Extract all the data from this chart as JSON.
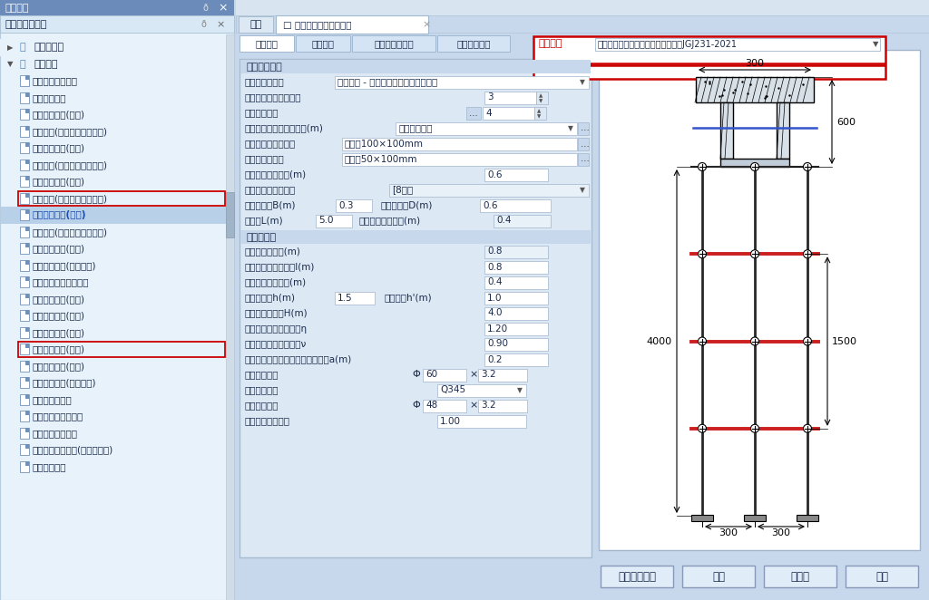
{
  "title_bar": "工程管理",
  "left_panel_title": "安全计算工具箱",
  "tab1": "首页",
  "tab2": "盘扣式梁模板支架计算",
  "tabs": [
    "架体参数",
    "荷载参数",
    "地基和楼板参数",
    "面板木方参数"
  ],
  "norm_label": "规范选择",
  "norm_value": "承插型盘扣式钢管支架安全技术规程JGJ231-2021",
  "tree_folder1": "脚手架工程",
  "tree_folder2": "模板工程",
  "tree_files": [
    {
      "label": "梁模板木支撑计算",
      "highlighted": false,
      "boxed": false
    },
    {
      "label": "梁侧模板计算",
      "highlighted": false,
      "boxed": false
    },
    {
      "label": "梁底模板支架(扣件)",
      "highlighted": false,
      "boxed": false
    },
    {
      "label": "梁底模架(扣件梁板立杆共用)",
      "highlighted": false,
      "boxed": false
    },
    {
      "label": "梁底模板支架(轮扣)",
      "highlighted": false,
      "boxed": false
    },
    {
      "label": "梁底模架(轮扣梁板立杆共用)",
      "highlighted": false,
      "boxed": false
    },
    {
      "label": "梁底模板支架(碗扣)",
      "highlighted": false,
      "boxed": false
    },
    {
      "label": "梁底模架(碗扣梁板立杆共用)",
      "highlighted": false,
      "boxed": true
    },
    {
      "label": "梁底模板支架(盘扣)",
      "highlighted": true,
      "boxed": false
    },
    {
      "label": "梁底模架(盘扣梁板立杆共用)",
      "highlighted": false,
      "boxed": false
    },
    {
      "label": "梁底模板支架(门式)",
      "highlighted": false,
      "boxed": false
    },
    {
      "label": "梁底模板支架(临时支撑)",
      "highlighted": false,
      "boxed": false
    },
    {
      "label": "箱型梁底模板支架计算",
      "highlighted": false,
      "boxed": false
    },
    {
      "label": "楼板模板支架(扣件)",
      "highlighted": false,
      "boxed": false
    },
    {
      "label": "楼板模板支架(轮扣)",
      "highlighted": false,
      "boxed": false
    },
    {
      "label": "楼板模板支架(碗扣)",
      "highlighted": false,
      "boxed": false
    },
    {
      "label": "楼板模板支架(盘扣)",
      "highlighted": false,
      "boxed": true
    },
    {
      "label": "楼板模板支架(门式)",
      "highlighted": false,
      "boxed": false
    },
    {
      "label": "楼板模板支架(临时支撑)",
      "highlighted": false,
      "boxed": false
    },
    {
      "label": "墙模板设计计算",
      "highlighted": false,
      "boxed": false
    },
    {
      "label": "中小断面柱模板计算",
      "highlighted": false,
      "boxed": false
    },
    {
      "label": "大断面柱模板计算",
      "highlighted": false,
      "boxed": false
    },
    {
      "label": "大断面柱模板计算(无对拉螺栓)",
      "highlighted": false,
      "boxed": false
    },
    {
      "label": "钢木立柱计算",
      "highlighted": false,
      "boxed": false
    }
  ],
  "sec1_title": "梁底支撑参数",
  "sec2_title": "脚手架参数",
  "row1_label": "承重架支设方式",
  "row1_value": "顶托支撑 - 梁底次龙骨垂直梁跨度方向",
  "row2_label": "梁底增加承重立杆根数",
  "row2_value": "3",
  "row3_label": "梁底龙骨根数",
  "row3_value": "4",
  "row4_label": "梁底增加承重杆间距调整(m)",
  "row4_value": "软件自动调整",
  "row5_label": "顶托内托梁材料选择",
  "row5_value": "木方：100×100mm",
  "row6_label": "次龙骨材料选择",
  "row6_value": "木方：50×100mm",
  "row7_label": "梁底支撑龙骨长度(m)",
  "row7_value": "0.6",
  "row8_label": "双槽钢托梁槽钢型号",
  "row8_value": "[8槽钢",
  "row9a_label": "梁截面宽度B(m)",
  "row9a_value": "0.3",
  "row9b_label": "梁截面高度D(m)",
  "row9b_value": "0.6",
  "row10a_label": "梁跨度L(m)",
  "row10a_value": "5.0",
  "row10b_label": "双槽钢上顶托间距(m)",
  "row10b_value": "0.4",
  "s2r1_label": "梁两侧立杆间距(m)",
  "s2r1_value": "0.8",
  "s2r2_label": "梁跨度方向立杆间距l(m)",
  "s2r2_value": "0.8",
  "s2r3_label": "梁底支撑龙骨间距(m)",
  "s2r3_value": "0.4",
  "s2r4a_label": "脚手架步距h(m)",
  "s2r4a_value": "1.5",
  "s2r4b_label": "顶层步距h'(m)",
  "s2r4b_value": "1.0",
  "s2r5_label": "脚手架搭设高度H(m)",
  "s2r5_value": "4.0",
  "s2r6_label": "立杆计算长度修正系数η",
  "s2r6_value": "1.20",
  "s2r7_label": "架体顶层步距修正系数ν",
  "s2r7_value": "0.90",
  "s2r8_label": "立杆上端伸出至模板支撑点的长度a(m)",
  "s2r8_value": "0.2",
  "s2r9_label": "立杆钢管外径",
  "s2r9_v1": "60",
  "s2r9_v2": "3.2",
  "s2r10_label": "立杆钢管材质",
  "s2r10_value": "Q345",
  "s2r11_label": "横杆钢管外径",
  "s2r11_v1": "48",
  "s2r11_v2": "3.2",
  "s2r12_label": "钢管强度折减系数",
  "s2r12_value": "1.00",
  "btn1": "危大工程判定",
  "btn2": "试算",
  "btn3": "计算书",
  "btn4": "取消",
  "dim_300_top": "300",
  "dim_600_right": "600",
  "dim_1500_right": "1500",
  "dim_4000_left": "4000",
  "dim_300_bot_l": "300",
  "dim_300_bot_r": "300",
  "bg_main": "#c5d8e8",
  "bg_left_panel": "#e8f0f8",
  "bg_title": "#6b8cba",
  "bg_panel_content": "#dce8f4",
  "bg_section_header": "#c8d8ec",
  "bg_tab_active": "#ffffff",
  "bg_tab_inactive": "#d4e4f4",
  "color_text_dark": "#1a2a4a",
  "color_highlight_row": "#b8d0e8",
  "color_red_box": "#cc0000",
  "color_input_white": "#ffffff",
  "color_input_gray": "#e0e8f4",
  "color_diagram_bg": "#ffffff"
}
